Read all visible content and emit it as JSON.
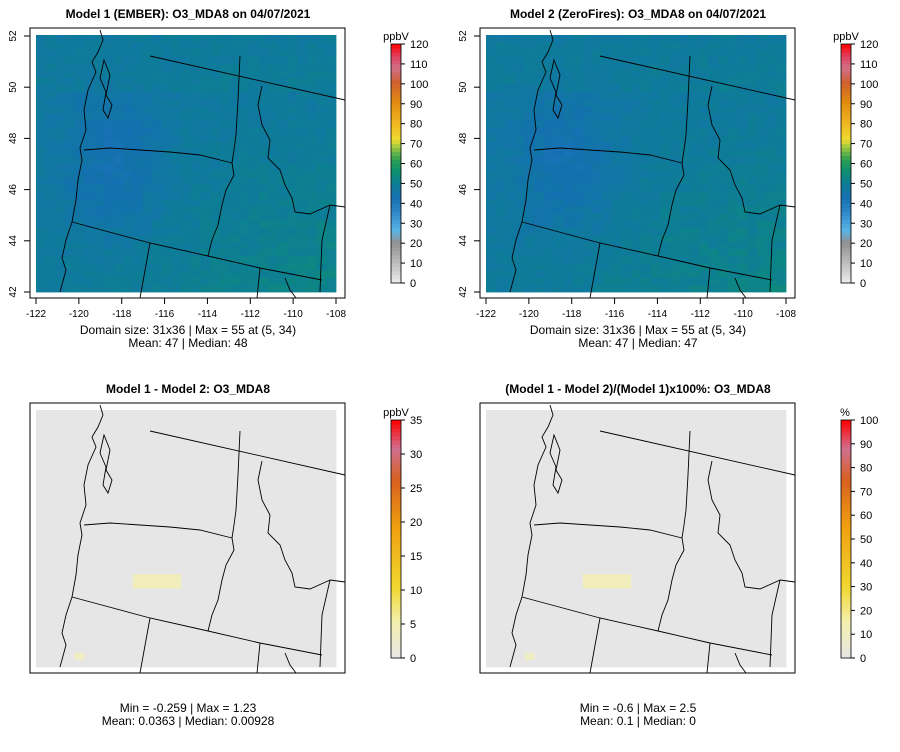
{
  "chart_data": [
    {
      "type": "heatmap",
      "title": "Model 1 (EMBER): O3_MDA8 on 04/07/2021",
      "xticks": [
        "-122",
        "-120",
        "-118",
        "-116",
        "-114",
        "-112",
        "-110",
        "-108"
      ],
      "yticks": [
        "42",
        "44",
        "46",
        "48",
        "50",
        "52"
      ],
      "xlim": [
        -122,
        -108
      ],
      "ylim": [
        42,
        52
      ],
      "colorbar": {
        "unit": "ppbV",
        "ticks": [
          "0",
          "10",
          "20",
          "30",
          "40",
          "50",
          "60",
          "70",
          "80",
          "90",
          "100",
          "110",
          "120"
        ],
        "range": [
          0,
          120
        ]
      },
      "stats_line1": "Domain size: 31x36 | Max = 55 at (5, 34)",
      "stats_line2": "Mean: 47 |  Median: 48",
      "field": {
        "mean": 47,
        "max": 55
      }
    },
    {
      "type": "heatmap",
      "title": "Model 2 (ZeroFires): O3_MDA8 on 04/07/2021",
      "xticks": [
        "-122",
        "-120",
        "-118",
        "-116",
        "-114",
        "-112",
        "-110",
        "-108"
      ],
      "yticks": [
        "42",
        "44",
        "46",
        "48",
        "50",
        "52"
      ],
      "xlim": [
        -122,
        -108
      ],
      "ylim": [
        42,
        52
      ],
      "colorbar": {
        "unit": "ppbV",
        "ticks": [
          "0",
          "10",
          "20",
          "30",
          "40",
          "50",
          "60",
          "70",
          "80",
          "90",
          "100",
          "110",
          "120"
        ],
        "range": [
          0,
          120
        ]
      },
      "stats_line1": "Domain size: 31x36 | Max = 55 at (5, 34)",
      "stats_line2": "Mean: 47 |  Median: 47",
      "field": {
        "mean": 47,
        "max": 55
      }
    },
    {
      "type": "heatmap",
      "title": "Model 1 - Model 2: O3_MDA8",
      "colorbar": {
        "unit": "ppbV",
        "ticks": [
          "0",
          "5",
          "10",
          "15",
          "20",
          "25",
          "30",
          "35"
        ],
        "range": [
          0,
          35
        ]
      },
      "stats_line1": "Min = -0.259 | Max = 1.23",
      "stats_line2": "Mean: 0.0363 |  Median: 0.00928"
    },
    {
      "type": "heatmap",
      "title": "(Model 1 - Model 2)/(Model 1)x100%: O3_MDA8",
      "colorbar": {
        "unit": "%",
        "ticks": [
          "0",
          "10",
          "20",
          "30",
          "40",
          "50",
          "60",
          "70",
          "80",
          "90",
          "100"
        ],
        "range": [
          0,
          100
        ]
      },
      "stats_line1": "Min = -0.6 | Max = 2.5",
      "stats_line2": "Mean: 0.1 |  Median: 0"
    }
  ]
}
